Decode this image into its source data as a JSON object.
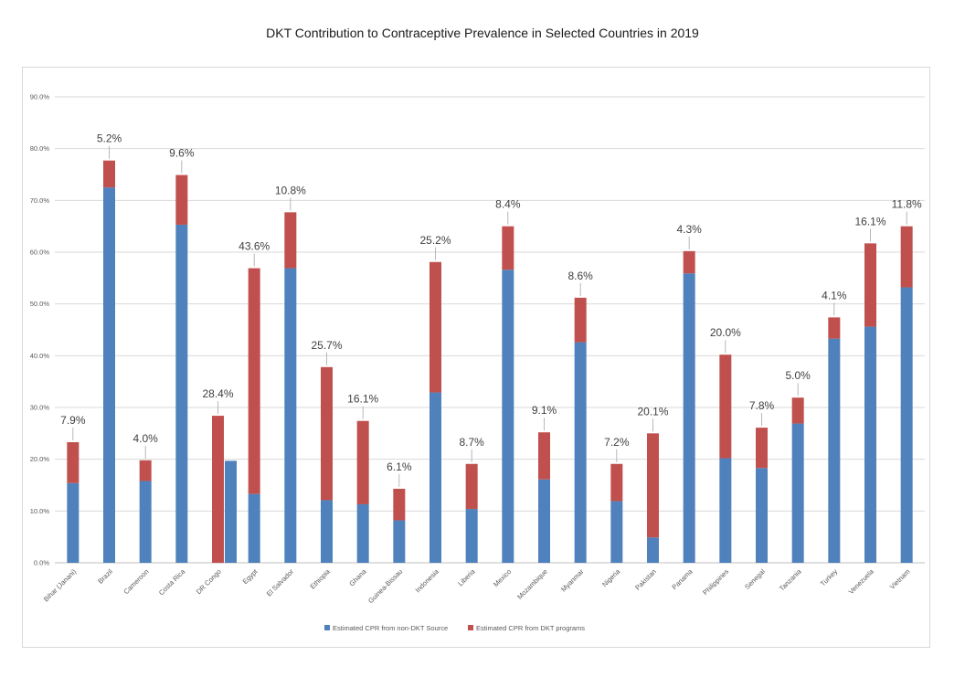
{
  "chart_data": {
    "type": "bar",
    "stacked": true,
    "title": "DKT Contribution to Contraceptive Prevalence in Selected Countries in 2019",
    "xlabel": "",
    "ylabel": "",
    "ylim": [
      0,
      90
    ],
    "y_ticks": [
      "0.0%",
      "10.0%",
      "20.0%",
      "30.0%",
      "40.0%",
      "50.0%",
      "60.0%",
      "70.0%",
      "80.0%",
      "90.0%"
    ],
    "grid": true,
    "legend_position": "bottom",
    "categories": [
      "Bihar (Janani)",
      "Brazil",
      "Cameroon",
      "Costa Rica",
      "DR Congo",
      "Egypt",
      "El Salvador",
      "Ethiopia",
      "Ghana",
      "Guinea-Bissau",
      "Indonesia",
      "Liberia",
      "Mexico",
      "Mozambique",
      "Myanmar",
      "Nigeria",
      "Pakistan",
      "Panama",
      "Philippines",
      "Senegal",
      "Tanzania",
      "Turkey",
      "Venezuela",
      "Vietnam"
    ],
    "series": [
      {
        "name": "Estimated CPR from non-DKT Source",
        "color": "#4f81bd",
        "values": [
          15.4,
          72.5,
          15.8,
          65.3,
          0.0,
          13.3,
          56.9,
          12.1,
          11.3,
          8.2,
          32.9,
          10.4,
          56.6,
          16.1,
          42.6,
          11.9,
          4.9,
          55.9,
          20.2,
          18.3,
          26.9,
          43.3,
          45.6,
          53.2
        ]
      },
      {
        "name": "Estimated CPR from DKT programs",
        "color": "#c0504d",
        "values": [
          7.9,
          5.2,
          4.0,
          9.6,
          28.4,
          43.6,
          10.8,
          25.7,
          16.1,
          6.1,
          25.2,
          8.7,
          8.4,
          9.1,
          8.6,
          7.2,
          20.1,
          4.3,
          20.0,
          7.8,
          5.0,
          4.1,
          16.1,
          11.8
        ]
      }
    ],
    "extra_bars": [
      {
        "category": "DR Congo",
        "series": "Estimated CPR from non-DKT Source",
        "value": 19.7
      }
    ],
    "data_labels": [
      "7.9%",
      "5.2%",
      "4.0%",
      "9.6%",
      "28.4%",
      "43.6%",
      "10.8%",
      "25.7%",
      "16.1%",
      "6.1%",
      "25.2%",
      "8.7%",
      "8.4%",
      "9.1%",
      "8.6%",
      "7.2%",
      "20.1%",
      "4.3%",
      "20.0%",
      "7.8%",
      "5.0%",
      "4.1%",
      "16.1%",
      "11.8%"
    ]
  }
}
